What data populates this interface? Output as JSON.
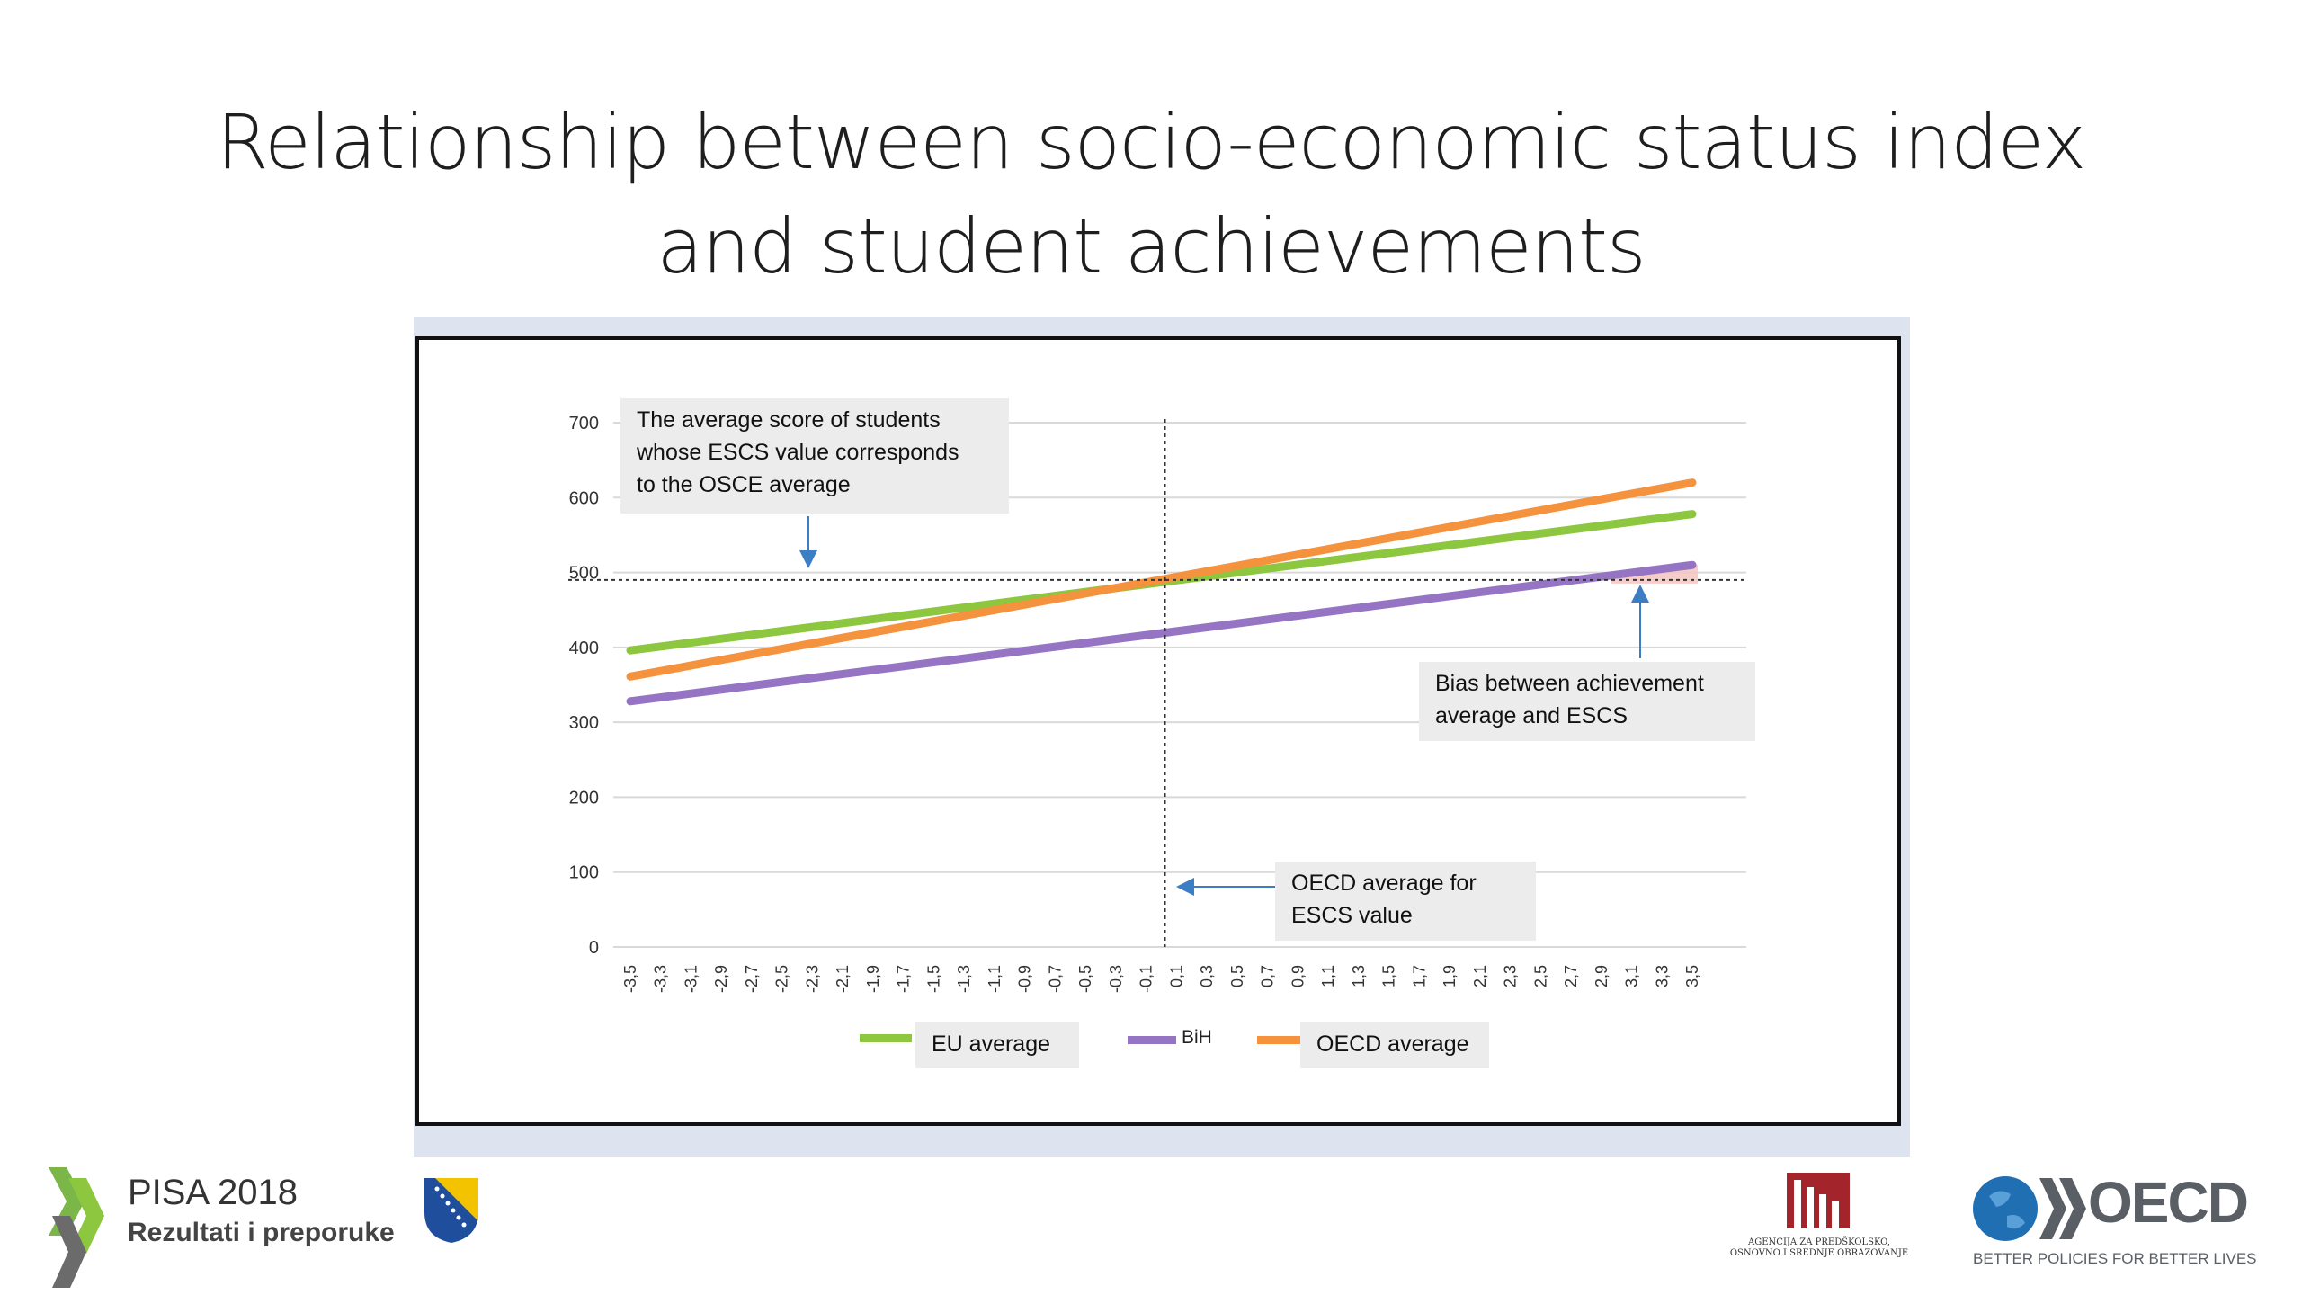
{
  "slide": {
    "title_line1": "Relationship between socio-economic status index",
    "title_line2": "and student achievements"
  },
  "callouts": {
    "average_score": [
      "The average score of students",
      "whose ESCS value corresponds",
      "to the OSCE average"
    ],
    "bias": [
      "Bias between achievement",
      "average and ESCS"
    ],
    "oecd_escs": [
      "OECD average for",
      "ESCS value"
    ]
  },
  "legend": {
    "eu": "EU average",
    "bih": "BiH",
    "oecd": "OECD average"
  },
  "footer": {
    "pisa_title": "PISA 2018",
    "pisa_subtitle": "Rezultati i preporuke",
    "agency_line1": "AGENCIJA ZA PREDŠKOLSKO,",
    "agency_line2": "OSNOVNO I SREDNJE OBRAZOVANJE",
    "oecd_name": "OECD",
    "oecd_tagline": "BETTER POLICIES FOR BETTER LIVES"
  },
  "colors": {
    "eu": "#8dc63f",
    "bih": "#9574c4",
    "oecd": "#f5923e",
    "ref_line": "#333333",
    "bias_fill": "#f6c4bf",
    "arrow": "#3b7ec4"
  },
  "chart_data": {
    "type": "line",
    "x": [
      "-3,5",
      "-3,3",
      "-3,1",
      "-2,9",
      "-2,7",
      "-2,5",
      "-2,3",
      "-2,1",
      "-1,9",
      "-1,7",
      "-1,5",
      "-1,3",
      "-1,1",
      "-0,9",
      "-0,7",
      "-0,5",
      "-0,3",
      "-0,1",
      "0,1",
      "0,3",
      "0,5",
      "0,7",
      "0,9",
      "1,1",
      "1,3",
      "1,5",
      "1,7",
      "1,9",
      "2,1",
      "2,3",
      "2,5",
      "2,7",
      "2,9",
      "3,1",
      "3,3",
      "3,5"
    ],
    "x_numeric_range": [
      -3.5,
      3.5
    ],
    "yticks": [
      "0",
      "100",
      "200",
      "300",
      "400",
      "500",
      "600",
      "700"
    ],
    "ylim": [
      0,
      700
    ],
    "series": [
      {
        "name": "EU average",
        "start": [
          -3.5,
          396
        ],
        "end": [
          3.5,
          578
        ]
      },
      {
        "name": "BiH",
        "start": [
          -3.5,
          328
        ],
        "end": [
          3.5,
          510
        ]
      },
      {
        "name": "OECD average",
        "start": [
          -3.5,
          361
        ],
        "end": [
          3.5,
          620
        ]
      }
    ],
    "reference": {
      "score": 490,
      "escs": 0.0
    },
    "grid": true,
    "legend_position": "bottom"
  }
}
